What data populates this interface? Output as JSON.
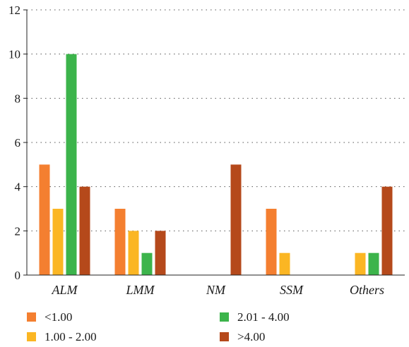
{
  "chart_data": {
    "type": "bar",
    "title": "",
    "xlabel": "",
    "ylabel": "",
    "categories": [
      "ALM",
      "LMM",
      "NM",
      "SSM",
      "Others"
    ],
    "series": [
      {
        "name": "<1.00",
        "color": "#f47f30",
        "values": [
          5,
          3,
          0,
          3,
          0
        ]
      },
      {
        "name": "1.00 - 2.00",
        "color": "#fbb623",
        "values": [
          3,
          2,
          0,
          1,
          1
        ]
      },
      {
        "name": "2.01 - 4.00",
        "color": "#3cb44b",
        "values": [
          10,
          1,
          0,
          0,
          1
        ]
      },
      {
        "name": ">4.00",
        "color": "#b5491b",
        "values": [
          4,
          2,
          5,
          0,
          4
        ]
      }
    ],
    "ylim": [
      0,
      12
    ],
    "yticks": [
      0,
      2,
      4,
      6,
      8,
      10,
      12
    ],
    "grid": "horizontal dotted",
    "legend_position": "bottom"
  }
}
